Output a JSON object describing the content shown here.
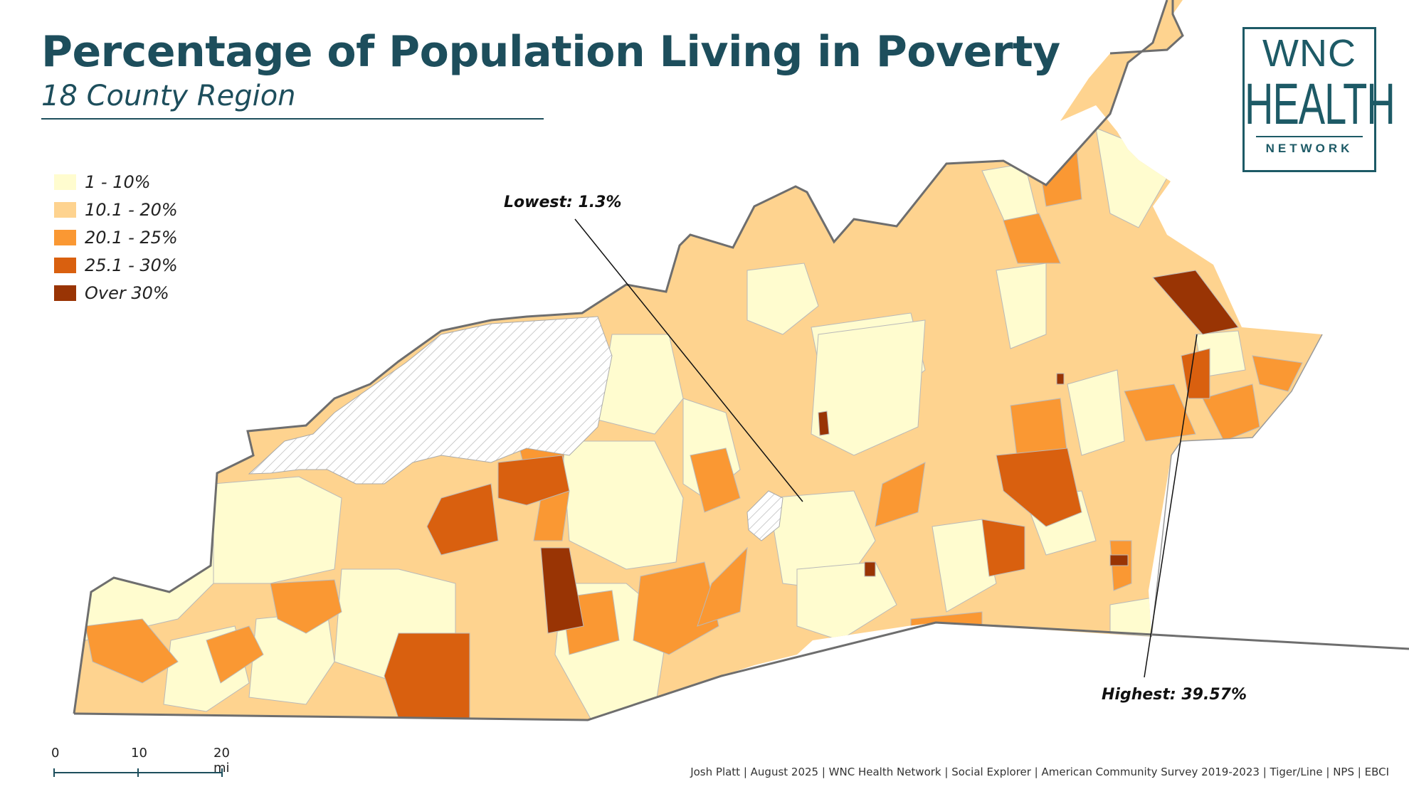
{
  "title": "Percentage of Population Living in Poverty",
  "subtitle": "18 County Region",
  "legend": [
    {
      "label": "1 - 10%",
      "color": "#fffccf"
    },
    {
      "label": "10.1 - 20%",
      "color": "#fed38f"
    },
    {
      "label": "20.1 - 25%",
      "color": "#fa9833"
    },
    {
      "label": "25.1 - 30%",
      "color": "#d9600f"
    },
    {
      "label": "Over 30%",
      "color": "#993404"
    }
  ],
  "callouts": {
    "lowest": "Lowest: 1.3%",
    "highest": "Highest: 39.57%"
  },
  "logo": {
    "line1": "WNC",
    "line2": "HEALTH",
    "line3": "NETWORK"
  },
  "scale_bar": {
    "ticks": [
      "0",
      "10",
      "20 mi"
    ]
  },
  "credits": "Josh Platt  |  August 2025  |  WNC Health Network  |  Social Explorer  |  American Community Survey 2019-2023  |  Tiger/Line  |  NPS  |  EBCI",
  "colors": {
    "title": "#1d4e5c",
    "outline": "#6e6e6e",
    "no_data_hatch": "#bbbbbb"
  }
}
